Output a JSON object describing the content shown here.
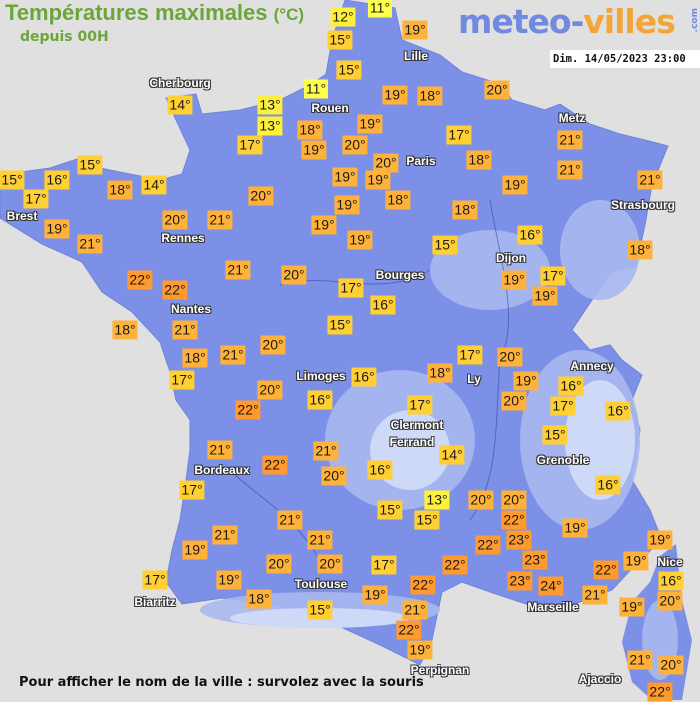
{
  "header": {
    "title": "Températures maximales",
    "unit": "(°C)",
    "subtitle": "depuis 00H",
    "logo": {
      "part1": "meteo-",
      "part2": "villes",
      "suffix": ".com"
    },
    "datetime": "Dim. 14/05/2023 23:00"
  },
  "colors": {
    "sea": "#e1e0e0",
    "land": "#7b90e6",
    "temp_11": "#ffff4d",
    "temp_12_13": "#fff03c",
    "temp_14_17": "#ffcf33",
    "temp_18_21": "#ffb23a",
    "temp_22_24": "#ff9a2e"
  },
  "cities": [
    "Cherbourg",
    "Rouen",
    "Lille",
    "Metz",
    "Paris",
    "Brest",
    "Rennes",
    "Strasbourg",
    "Dijon",
    "Bourges",
    "Nantes",
    "Limoges",
    "Annecy",
    "Ly",
    "Clermont",
    "Ferrand",
    "Grenoble",
    "Bordeaux",
    "Toulouse",
    "Nice",
    "Biarritz",
    "Marseille",
    "Perpignan",
    "Ajaccio"
  ],
  "temperatures": [
    12,
    11,
    15,
    19,
    15,
    11,
    19,
    18,
    20,
    14,
    13,
    13,
    18,
    19,
    17,
    21,
    17,
    19,
    20,
    20,
    18,
    15,
    15,
    16,
    17,
    18,
    14,
    19,
    19,
    21,
    21,
    19,
    18,
    20,
    19,
    18,
    20,
    21,
    19,
    19,
    21,
    19,
    15,
    16,
    18,
    21,
    20,
    22,
    22,
    19,
    17,
    17,
    16,
    19,
    18,
    21,
    15,
    20,
    18,
    21,
    17,
    20,
    17,
    20,
    16,
    18,
    19,
    16,
    20,
    17,
    22,
    16,
    17,
    16,
    15,
    21,
    14,
    21,
    22,
    20,
    16,
    16,
    17,
    13,
    20,
    20,
    15,
    15,
    22,
    21,
    19,
    21,
    21,
    23,
    22,
    19,
    19,
    19,
    20,
    20,
    17,
    22,
    23,
    22,
    16,
    17,
    19,
    23,
    22,
    24,
    21,
    18,
    19,
    20,
    15,
    19,
    21,
    22,
    19,
    21,
    20,
    22
  ],
  "degree_symbol": "°",
  "footer": "Pour afficher le nom de la ville : survolez avec la souris"
}
